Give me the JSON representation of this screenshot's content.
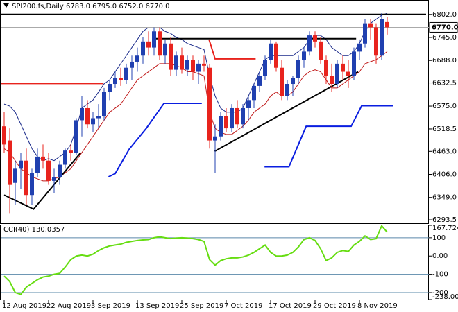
{
  "chart_data": {
    "type": "candlestick",
    "title": "SPI200.fs,Daily  6783.0 6795.0 6752.0 6770.0",
    "categories": [
      "12 Aug 2019",
      null,
      null,
      null,
      null,
      null,
      null,
      null,
      "22 Aug 2019",
      null,
      null,
      null,
      null,
      null,
      null,
      null,
      "3 Sep 2019",
      null,
      null,
      null,
      null,
      null,
      null,
      null,
      "13 Sep 2019",
      null,
      null,
      null,
      null,
      null,
      null,
      null,
      "25 Sep 2019",
      null,
      null,
      null,
      null,
      null,
      null,
      null,
      "7 Oct 2019",
      null,
      null,
      null,
      null,
      null,
      null,
      null,
      "17 Oct 2019",
      null,
      null,
      null,
      null,
      null,
      null,
      null,
      "29 Oct 2019",
      null,
      null,
      null,
      null,
      null,
      null,
      null,
      "8 Nov 2019",
      null,
      null,
      null,
      null,
      null
    ],
    "open": [
      6525,
      6490,
      6385,
      6420,
      6440,
      6355,
      6410,
      6450,
      6440,
      6390,
      6400,
      6430,
      6465,
      6460,
      6540,
      6570,
      6530,
      6545,
      6550,
      6610,
      6630,
      6645,
      6640,
      6670,
      6685,
      6700,
      6735,
      6720,
      6760,
      6700,
      6730,
      6665,
      6700,
      6665,
      6690,
      6660,
      6680,
      6670,
      6490,
      6500,
      6550,
      6520,
      6570,
      6530,
      6570,
      6590,
      6625,
      6650,
      6690,
      6730,
      6670,
      6600,
      6630,
      6645,
      6690,
      6710,
      6750,
      6735,
      6690,
      6650,
      6630,
      6680,
      6660,
      6650,
      6710,
      6730,
      6780,
      6770,
      6700,
      6783
    ],
    "high": [
      6560,
      6520,
      6440,
      6460,
      6470,
      6420,
      6470,
      6480,
      6460,
      6420,
      6440,
      6470,
      6480,
      6545,
      6600,
      6590,
      6560,
      6580,
      6620,
      6640,
      6660,
      6670,
      6680,
      6700,
      6720,
      6745,
      6760,
      6770,
      6770,
      6740,
      6745,
      6710,
      6720,
      6700,
      6700,
      6690,
      6700,
      6680,
      6530,
      6560,
      6570,
      6580,
      6590,
      6580,
      6600,
      6630,
      6660,
      6700,
      6740,
      6735,
      6690,
      6640,
      6650,
      6700,
      6720,
      6760,
      6760,
      6745,
      6700,
      6680,
      6690,
      6700,
      6690,
      6720,
      6740,
      6790,
      6790,
      6780,
      6805,
      6795
    ],
    "low": [
      6460,
      6310,
      6330,
      6370,
      6330,
      6330,
      6400,
      6420,
      6380,
      6360,
      6380,
      6420,
      6440,
      6455,
      6500,
      6520,
      6510,
      6520,
      6540,
      6590,
      6620,
      6625,
      6630,
      6640,
      6660,
      6680,
      6700,
      6700,
      6690,
      6680,
      6650,
      6650,
      6655,
      6650,
      6640,
      6630,
      6660,
      6470,
      6410,
      6490,
      6510,
      6510,
      6520,
      6520,
      6540,
      6570,
      6610,
      6640,
      6680,
      6660,
      6590,
      6590,
      6600,
      6630,
      6670,
      6700,
      6720,
      6680,
      6630,
      6610,
      6620,
      6640,
      6620,
      6640,
      6690,
      6720,
      6740,
      6680,
      6690,
      6752
    ],
    "close": [
      6480,
      6380,
      6420,
      6440,
      6355,
      6410,
      6450,
      6440,
      6390,
      6400,
      6430,
      6465,
      6460,
      6540,
      6570,
      6530,
      6545,
      6550,
      6610,
      6630,
      6645,
      6640,
      6670,
      6685,
      6700,
      6735,
      6720,
      6760,
      6700,
      6730,
      6665,
      6700,
      6665,
      6690,
      6660,
      6680,
      6675,
      6490,
      6500,
      6550,
      6520,
      6570,
      6530,
      6570,
      6590,
      6625,
      6650,
      6690,
      6730,
      6670,
      6600,
      6630,
      6645,
      6690,
      6710,
      6750,
      6735,
      6690,
      6650,
      6630,
      6680,
      6660,
      6650,
      6710,
      6730,
      6780,
      6770,
      6700,
      6790,
      6770
    ],
    "up_color": "#2040b0",
    "down_color": "#e8231d",
    "ylim": [
      6285,
      6836
    ],
    "yticks": [
      {
        "value": 6802,
        "label": "6802.0"
      },
      {
        "value": 6745,
        "label": "6745.0"
      },
      {
        "value": 6688,
        "label": "6688.0"
      },
      {
        "value": 6632.5,
        "label": "6632.5"
      },
      {
        "value": 6575,
        "label": "6575.0"
      },
      {
        "value": 6518.5,
        "label": "6518.5"
      },
      {
        "value": 6463,
        "label": "6463.0"
      },
      {
        "value": 6406,
        "label": "6406.0"
      },
      {
        "value": 6349,
        "label": "6349.0"
      },
      {
        "value": 6293.5,
        "label": "6293.5"
      }
    ],
    "current": {
      "value": 6770,
      "label": "6770.0"
    },
    "bands": [
      {
        "color": "#1a2a8a",
        "values": [
          6580,
          6575,
          6560,
          6530,
          6500,
          6470,
          6450,
          6440,
          6445,
          6440,
          6450,
          6460,
          6480,
          6520,
          6570,
          6580,
          6590,
          6610,
          6630,
          6640,
          6660,
          6680,
          6700,
          6720,
          6740,
          6760,
          6770,
          6770,
          6770,
          6760,
          6755,
          6745,
          6740,
          6730,
          6725,
          6720,
          6715,
          6650,
          6600,
          6570,
          6560,
          6560,
          6560,
          6570,
          6600,
          6630,
          6660,
          6690,
          6700,
          6700,
          6700,
          6700,
          6700,
          6710,
          6720,
          6740,
          6750,
          6750,
          6740,
          6720,
          6710,
          6700,
          6700,
          6710,
          6730,
          6760,
          6780,
          6790,
          6800,
          6805
        ]
      },
      {
        "color": "#c01818",
        "values": [
          6470,
          6460,
          6440,
          6420,
          6410,
          6400,
          6395,
          6390,
          6390,
          6395,
          6400,
          6410,
          6420,
          6440,
          6460,
          6480,
          6500,
          6520,
          6540,
          6560,
          6570,
          6580,
          6600,
          6620,
          6640,
          6650,
          6660,
          6670,
          6680,
          6680,
          6680,
          6675,
          6670,
          6660,
          6660,
          6655,
          6650,
          6560,
          6520,
          6510,
          6505,
          6505,
          6515,
          6525,
          6540,
          6560,
          6570,
          6580,
          6600,
          6610,
          6600,
          6600,
          6610,
          6630,
          6650,
          6660,
          6665,
          6660,
          6640,
          6620,
          6620,
          6630,
          6640,
          6650,
          6660,
          6680,
          6685,
          6690,
          6700,
          6710
        ]
      }
    ],
    "overlays": [
      {
        "color": "#000000",
        "points": [
          [
            0,
            6355
          ],
          [
            5.3,
            6320
          ],
          [
            13.8,
            6460
          ]
        ]
      },
      {
        "color": "#000000",
        "points": [
          [
            26.9,
            6742
          ],
          [
            63.4,
            6742
          ]
        ]
      },
      {
        "color": "#000000",
        "points": [
          [
            37.9,
            6463
          ],
          [
            63.75,
            6660
          ]
        ]
      },
      {
        "color": "#000000",
        "points": [
          [
            -1,
            6802
          ],
          [
            76,
            6802
          ]
        ]
      },
      {
        "color": "#e8231d",
        "points": [
          [
            -1,
            6631
          ],
          [
            17.9,
            6631
          ]
        ]
      },
      {
        "color": "#e8231d",
        "points": [
          [
            36.9,
            6740
          ],
          [
            38,
            6692
          ],
          [
            45.3,
            6692
          ]
        ]
      },
      {
        "color": "#0a1ee0",
        "points": [
          [
            18.8,
            6400
          ],
          [
            20,
            6408
          ],
          [
            22.5,
            6468
          ],
          [
            25.6,
            6520
          ],
          [
            28.8,
            6582
          ],
          [
            35.6,
            6582
          ]
        ]
      },
      {
        "color": "#0a1ee0",
        "points": [
          [
            46.9,
            6425
          ],
          [
            51.3,
            6425
          ],
          [
            54.4,
            6525
          ],
          [
            62.5,
            6525
          ],
          [
            64.4,
            6576
          ],
          [
            70,
            6576
          ]
        ]
      }
    ],
    "indicator": {
      "type": "line",
      "title": "CCI(40) 130.0357",
      "color": "#66dd11",
      "level_color": "#5a88aa",
      "values": [
        -110,
        -140,
        -200,
        -210,
        -170,
        -150,
        -130,
        -115,
        -110,
        -100,
        -95,
        -60,
        -20,
        0,
        5,
        0,
        10,
        30,
        45,
        55,
        60,
        65,
        75,
        80,
        85,
        88,
        90,
        100,
        105,
        100,
        95,
        98,
        100,
        98,
        95,
        90,
        80,
        -20,
        -50,
        -25,
        -15,
        -10,
        -10,
        -5,
        5,
        20,
        40,
        60,
        20,
        0,
        0,
        5,
        20,
        50,
        90,
        100,
        85,
        40,
        -25,
        -10,
        20,
        30,
        25,
        60,
        80,
        110,
        90,
        95,
        165,
        130.0357
      ],
      "ylim": [
        -238.009,
        167.7248
      ],
      "yticks": [
        167.7248,
        100,
        {
          "value": 0,
          "label": "0.00"
        },
        -100,
        -200,
        -238.009
      ],
      "levels": [
        100,
        -100,
        -200
      ]
    }
  }
}
